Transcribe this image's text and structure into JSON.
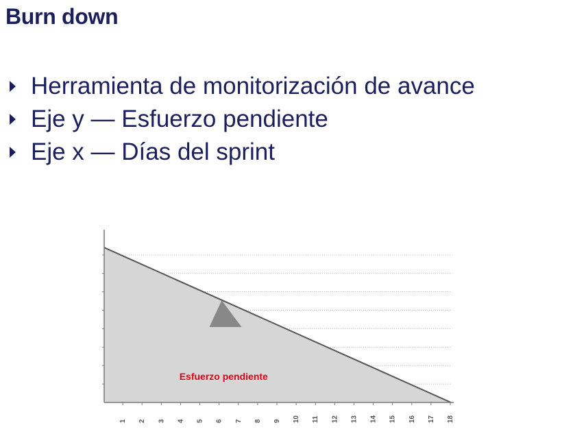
{
  "slide": {
    "title": "Burn down",
    "bullets": [
      {
        "text": "Herramienta de monitorización de avance"
      },
      {
        "text": "Eje y — Esfuerzo pendiente"
      },
      {
        "text": "Eje x — Días del sprint"
      }
    ]
  },
  "chart_data": {
    "type": "area",
    "x": [
      0,
      18
    ],
    "y": [
      100,
      0
    ],
    "xlim": [
      0,
      18
    ],
    "ylim": [
      0,
      108
    ],
    "xticks": [
      "1",
      "2",
      "3",
      "4",
      "5",
      "6",
      "7",
      "8",
      "9",
      "10",
      "11",
      "12",
      "13",
      "14",
      "15",
      "16",
      "17",
      "18"
    ],
    "area_label": "Esfuerzo pendiente",
    "grid": true,
    "fill_color": "#d6d6d6",
    "line_color": "#555555",
    "grid_color": "#b8b8b8",
    "label_color": "#e0001a",
    "arrow_color": "#888888"
  }
}
